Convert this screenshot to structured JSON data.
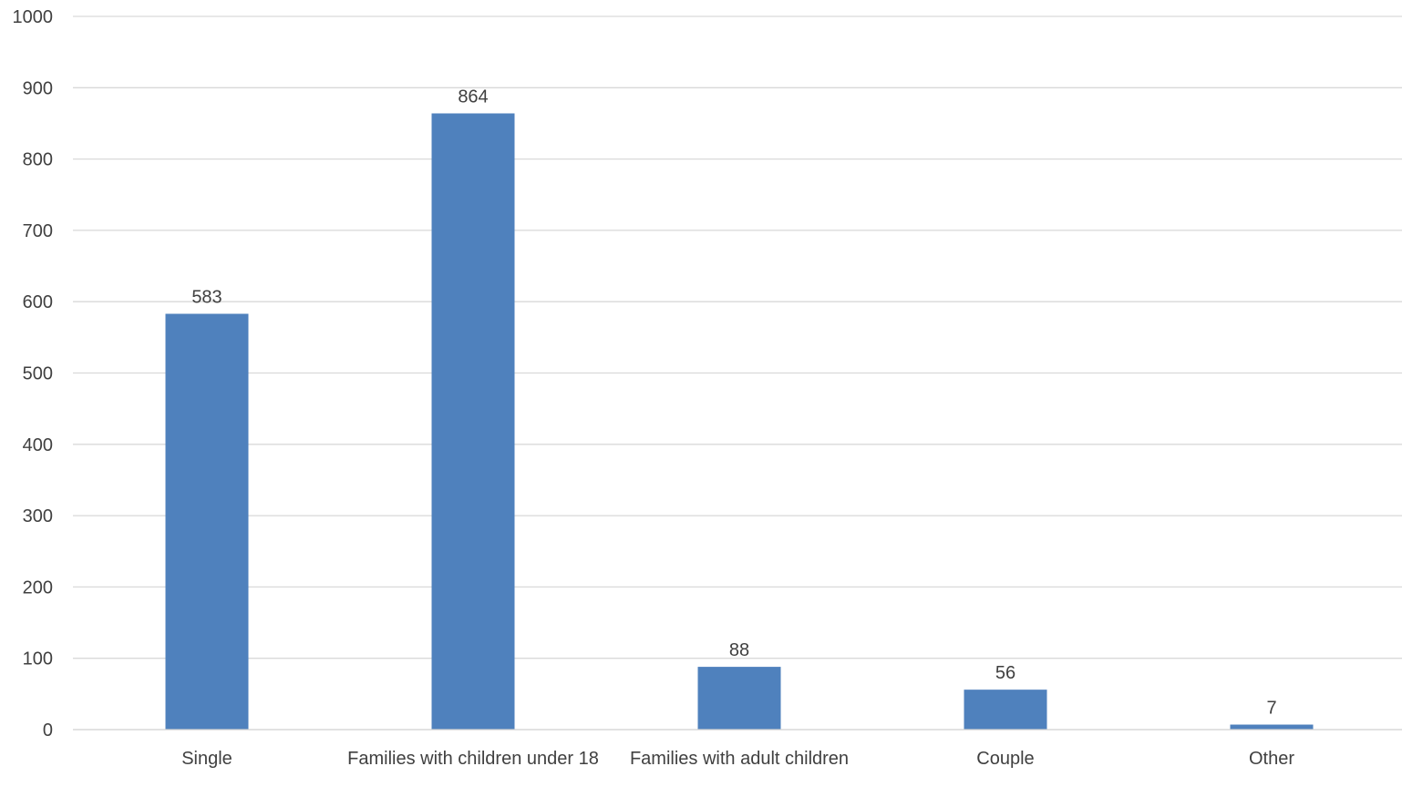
{
  "chart_data": {
    "type": "bar",
    "categories": [
      "Single",
      "Families with children under 18",
      "Families with adult children",
      "Couple",
      "Other"
    ],
    "values": [
      583,
      864,
      88,
      56,
      7
    ],
    "data_labels": [
      "583",
      "864",
      "88",
      "56",
      "7"
    ],
    "yticks": [
      "0",
      "100",
      "200",
      "300",
      "400",
      "500",
      "600",
      "700",
      "800",
      "900",
      "1000"
    ],
    "ylim": [
      0,
      1000
    ],
    "title": "",
    "xlabel": "",
    "ylabel": "",
    "grid": true,
    "legend": "none",
    "bar_color": "#4f81bd"
  }
}
